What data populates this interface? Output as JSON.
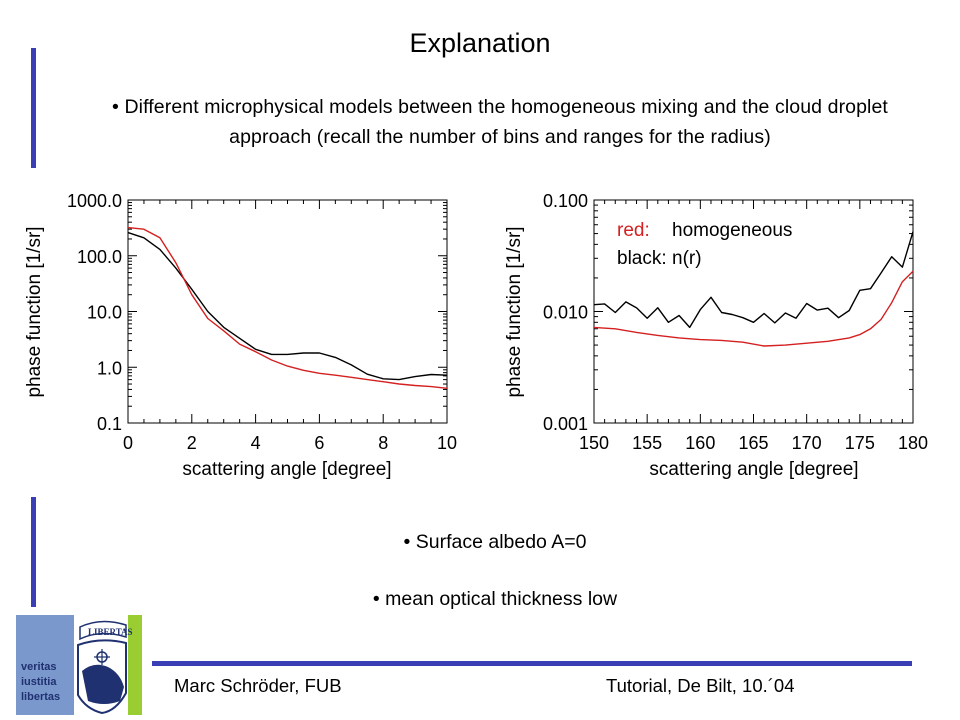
{
  "slide": {
    "title": "Explanation",
    "bullet_top": "• Different microphysical models between the homogeneous mixing and the cloud droplet approach (recall the number of bins and ranges for the radius)",
    "bullet_albedo": "• Surface albedo A=0",
    "bullet_thickness": "• mean optical thickness low",
    "footer_left": "Marc Schröder, FUB",
    "footer_right": "Tutorial, De Bilt, 10.´04",
    "logo_text": [
      "veritas",
      "iustitia",
      "libertas"
    ],
    "logo_banner": "LIBERTAS"
  },
  "colors": {
    "accent_bar": "#3a3fb5",
    "logo_blue": "#7b98cd",
    "logo_green": "#9acd32",
    "homogeneous": "#d42020",
    "nr": "#000000"
  },
  "chart_data": [
    {
      "type": "line",
      "xlabel": "scattering angle [degree]",
      "ylabel": "phase function [1/sr]",
      "xlim": [
        0,
        10
      ],
      "ylim": [
        0.1,
        1000
      ],
      "yscale": "log",
      "xticks": [
        "0",
        "2",
        "4",
        "6",
        "8",
        "10"
      ],
      "yticks": [
        "0.1",
        "1.0",
        "10.0",
        "100.0",
        "1000.0"
      ],
      "series": [
        {
          "name": "n(r)",
          "color": "#000000",
          "x": [
            0,
            0.5,
            1,
            1.5,
            2,
            2.5,
            3,
            3.5,
            4,
            4.5,
            5,
            5.5,
            6,
            6.5,
            7,
            7.5,
            8,
            8.5,
            9,
            9.5,
            10
          ],
          "y": [
            260,
            210,
            130,
            60,
            25,
            10,
            5.2,
            3.3,
            2.1,
            1.7,
            1.7,
            1.8,
            1.8,
            1.5,
            1.1,
            0.75,
            0.62,
            0.6,
            0.68,
            0.74,
            0.72
          ]
        },
        {
          "name": "homogeneous",
          "color": "#d42020",
          "x": [
            0,
            0.5,
            1,
            1.5,
            2,
            2.5,
            3,
            3.5,
            4,
            4.5,
            5,
            5.5,
            6,
            6.5,
            7,
            7.5,
            8,
            8.5,
            9,
            9.5,
            10
          ],
          "y": [
            320,
            300,
            210,
            75,
            20,
            7.5,
            4.5,
            2.6,
            1.9,
            1.35,
            1.05,
            0.88,
            0.78,
            0.72,
            0.66,
            0.6,
            0.55,
            0.5,
            0.47,
            0.45,
            0.42
          ]
        }
      ]
    },
    {
      "type": "line",
      "xlabel": "scattering angle [degree]",
      "ylabel": "phase function [1/sr]",
      "xlim": [
        150,
        180
      ],
      "ylim": [
        0.001,
        0.1
      ],
      "yscale": "log",
      "xticks": [
        "150",
        "155",
        "160",
        "165",
        "170",
        "175",
        "180"
      ],
      "yticks": [
        "0.001",
        "0.010",
        "0.100"
      ],
      "legend": [
        {
          "key": "red:",
          "value": "homogeneous",
          "color": "#d42020"
        },
        {
          "key": "black:",
          "value": "n(r)",
          "color": "#000000"
        }
      ],
      "series": [
        {
          "name": "n(r)",
          "color": "#000000",
          "x": [
            150,
            151,
            152,
            153,
            154,
            155,
            156,
            157,
            158,
            159,
            160,
            161,
            162,
            163,
            164,
            165,
            166,
            167,
            168,
            169,
            170,
            171,
            172,
            173,
            174,
            175,
            176,
            177,
            178,
            179,
            180
          ],
          "y": [
            0.0115,
            0.0117,
            0.0098,
            0.0122,
            0.0108,
            0.0087,
            0.0108,
            0.008,
            0.0092,
            0.0072,
            0.0104,
            0.0134,
            0.0098,
            0.0094,
            0.0088,
            0.008,
            0.0096,
            0.0079,
            0.0097,
            0.0087,
            0.0118,
            0.0103,
            0.0107,
            0.0088,
            0.0102,
            0.0155,
            0.016,
            0.0222,
            0.031,
            0.025,
            0.052
          ]
        },
        {
          "name": "homogeneous",
          "color": "#d42020",
          "x": [
            150,
            152,
            154,
            156,
            158,
            160,
            162,
            164,
            166,
            168,
            170,
            172,
            174,
            175,
            176,
            177,
            178,
            179,
            180
          ],
          "y": [
            0.0072,
            0.007,
            0.0065,
            0.0061,
            0.0058,
            0.0056,
            0.0055,
            0.0053,
            0.0049,
            0.005,
            0.0052,
            0.0054,
            0.0058,
            0.0062,
            0.007,
            0.0085,
            0.012,
            0.0185,
            0.023
          ]
        }
      ]
    }
  ]
}
